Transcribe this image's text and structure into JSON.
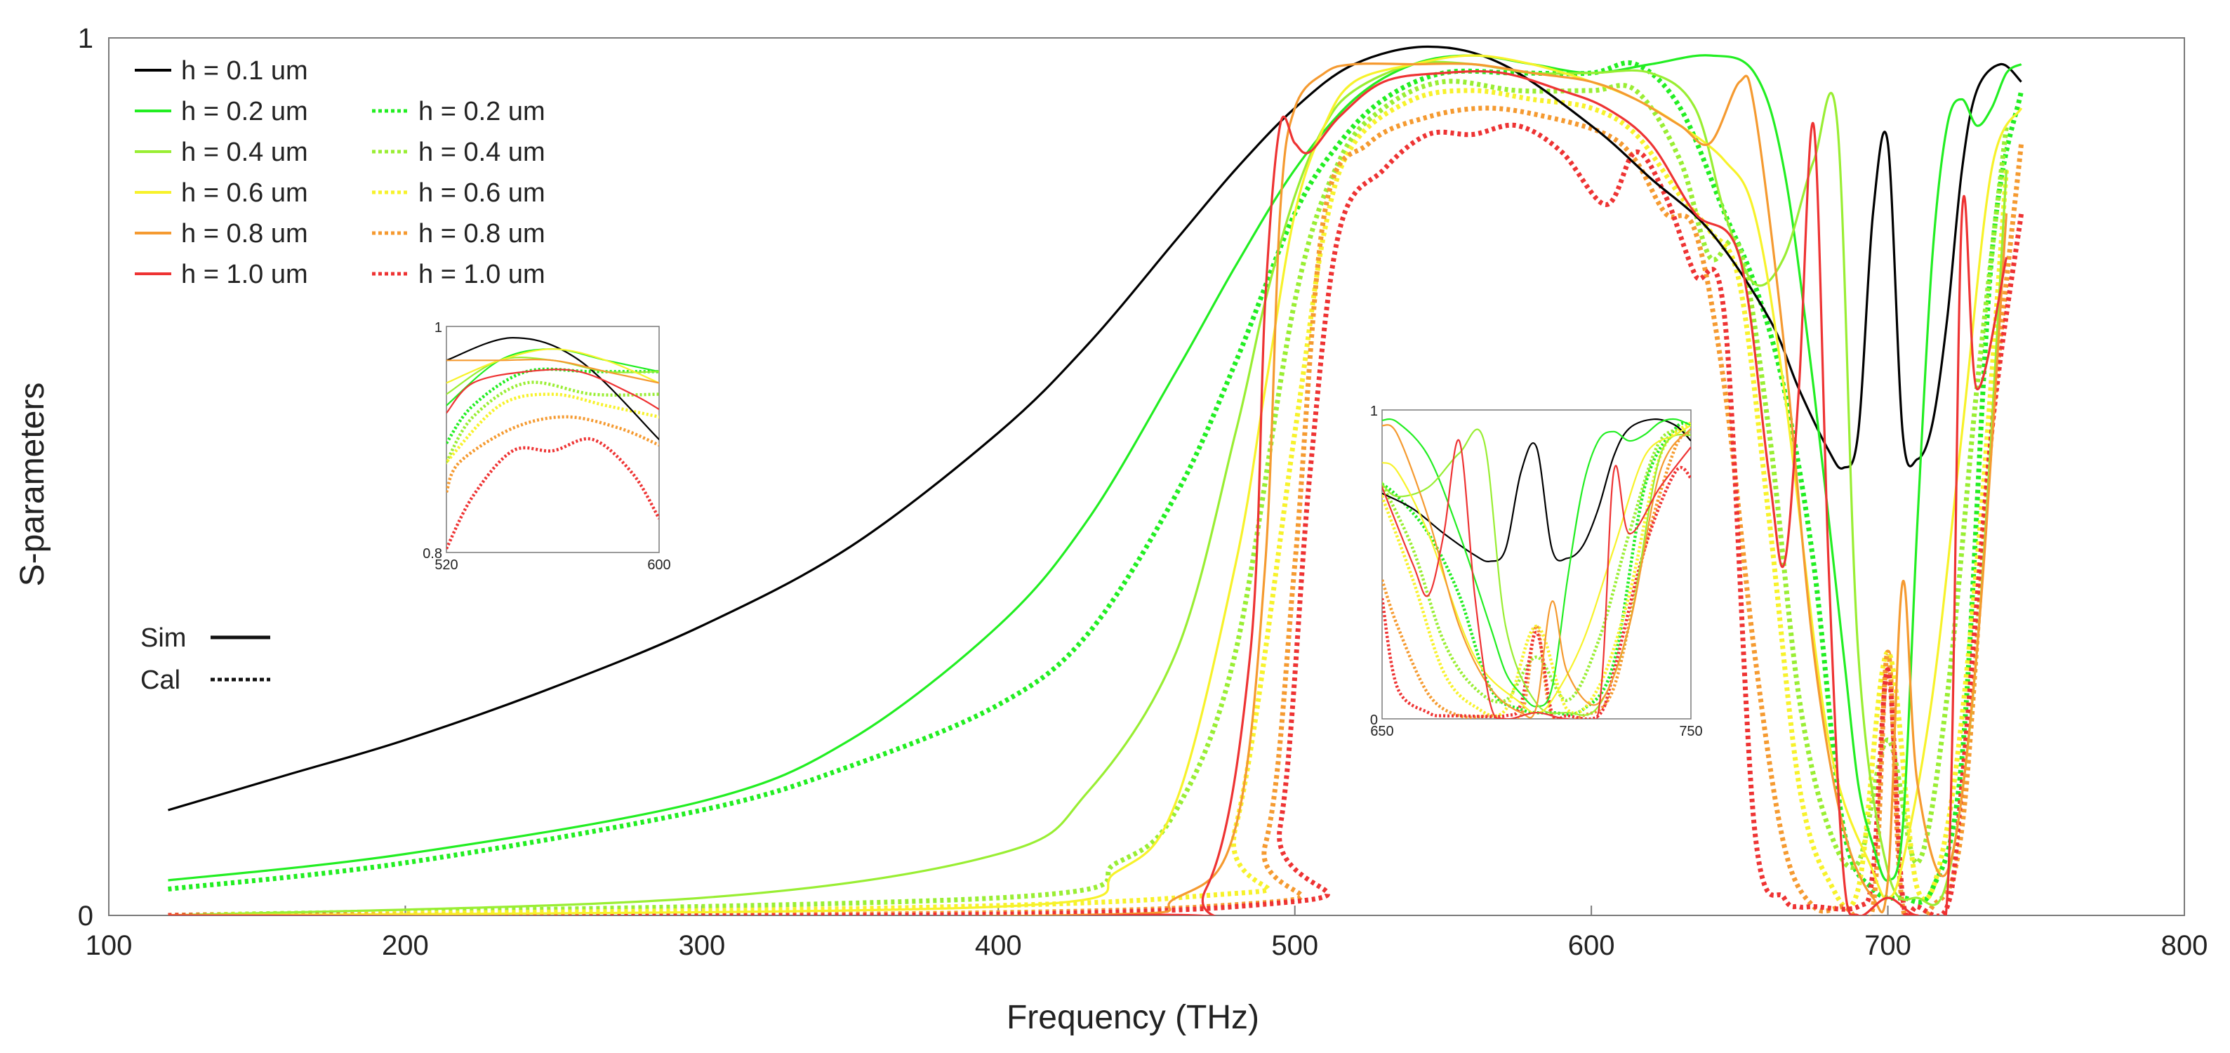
{
  "colors": {
    "h01": "#000000",
    "h02": "#22ee22",
    "h04": "#99ee33",
    "h06": "#f7f22a",
    "h08": "#f59a30",
    "h10": "#ee3333",
    "axis": "#7a7a7a"
  },
  "chart_data": {
    "type": "line",
    "title": "",
    "xlabel": "Frequency (THz)",
    "ylabel": "S-parameters",
    "xlim": [
      100,
      800
    ],
    "ylim": [
      0,
      1
    ],
    "xticks": [
      "100",
      "200",
      "300",
      "400",
      "500",
      "600",
      "700",
      "800"
    ],
    "yticks": [
      "0",
      "1"
    ],
    "style_legend": [
      {
        "name": "Sim",
        "dash": "solid"
      },
      {
        "name": "Cal",
        "dash": "dotted"
      }
    ],
    "series": [
      {
        "key": "h01",
        "name": "h = 0.1 um",
        "kind": "Sim",
        "color_key": "h01",
        "x": [
          120,
          160,
          200,
          250,
          300,
          350,
          400,
          430,
          460,
          480,
          500,
          520,
          545,
          570,
          600,
          620,
          640,
          660,
          670,
          680,
          685,
          690,
          695,
          700,
          705,
          710,
          715,
          720,
          725,
          730,
          738,
          745,
          750
        ],
        "y": [
          0.12,
          0.16,
          0.2,
          0.26,
          0.33,
          0.42,
          0.55,
          0.65,
          0.77,
          0.85,
          0.92,
          0.97,
          0.99,
          0.97,
          0.9,
          0.84,
          0.78,
          0.68,
          0.6,
          0.53,
          0.51,
          0.55,
          0.8,
          0.88,
          0.55,
          0.52,
          0.56,
          0.68,
          0.85,
          0.94,
          0.97,
          0.95,
          0.9
        ]
      },
      {
        "key": "h02s",
        "name": "h = 0.2 um",
        "kind": "Sim",
        "color_key": "h02",
        "x": [
          120,
          200,
          300,
          350,
          400,
          430,
          460,
          480,
          500,
          520,
          540,
          560,
          580,
          600,
          620,
          640,
          655,
          665,
          675,
          685,
          690,
          695,
          700,
          705,
          710,
          715,
          720,
          725,
          730,
          735,
          740,
          745,
          750
        ],
        "y": [
          0.04,
          0.07,
          0.13,
          0.2,
          0.33,
          0.45,
          0.62,
          0.74,
          0.85,
          0.93,
          0.97,
          0.98,
          0.97,
          0.96,
          0.97,
          0.98,
          0.96,
          0.85,
          0.6,
          0.3,
          0.15,
          0.08,
          0.04,
          0.1,
          0.45,
          0.75,
          0.9,
          0.93,
          0.9,
          0.92,
          0.96,
          0.97,
          0.95
        ]
      },
      {
        "key": "h02c",
        "name": "h = 0.2 um",
        "kind": "Cal",
        "color_key": "h02",
        "x": [
          120,
          200,
          300,
          350,
          400,
          430,
          460,
          480,
          500,
          515,
          530,
          550,
          575,
          600,
          615,
          630,
          645,
          655,
          665,
          675,
          685,
          695,
          705,
          715,
          725,
          735,
          745,
          750
        ],
        "y": [
          0.03,
          0.06,
          0.12,
          0.17,
          0.24,
          0.32,
          0.48,
          0.63,
          0.8,
          0.88,
          0.93,
          0.96,
          0.96,
          0.96,
          0.97,
          0.92,
          0.8,
          0.72,
          0.6,
          0.4,
          0.1,
          0.03,
          0.02,
          0.03,
          0.18,
          0.75,
          0.94,
          0.95
        ]
      },
      {
        "key": "h04s",
        "name": "h = 0.4 um",
        "kind": "Sim",
        "color_key": "h04",
        "x": [
          120,
          300,
          400,
          430,
          460,
          480,
          490,
          500,
          510,
          520,
          540,
          560,
          580,
          600,
          620,
          635,
          645,
          655,
          665,
          675,
          683,
          690,
          700,
          710,
          720,
          730,
          740,
          750
        ],
        "y": [
          0.0,
          0.02,
          0.07,
          0.14,
          0.3,
          0.55,
          0.7,
          0.82,
          0.9,
          0.94,
          0.97,
          0.97,
          0.96,
          0.96,
          0.96,
          0.92,
          0.8,
          0.72,
          0.75,
          0.86,
          0.9,
          0.3,
          0.05,
          0.02,
          0.04,
          0.3,
          0.85,
          0.92
        ]
      },
      {
        "key": "h04c",
        "name": "h = 0.4 um",
        "kind": "Cal",
        "color_key": "h04",
        "x": [
          120,
          400,
          440,
          460,
          480,
          500,
          515,
          530,
          550,
          575,
          600,
          615,
          630,
          640,
          650,
          660,
          670,
          680,
          690,
          700,
          710,
          720,
          730,
          740,
          750
        ],
        "y": [
          0.0,
          0.02,
          0.06,
          0.12,
          0.3,
          0.7,
          0.86,
          0.92,
          0.95,
          0.94,
          0.94,
          0.94,
          0.86,
          0.75,
          0.76,
          0.55,
          0.25,
          0.1,
          0.06,
          0.2,
          0.06,
          0.25,
          0.6,
          0.9,
          0.93
        ]
      },
      {
        "key": "h06s",
        "name": "h = 0.6 um",
        "kind": "Sim",
        "color_key": "h06",
        "x": [
          120,
          400,
          440,
          460,
          480,
          490,
          500,
          510,
          520,
          540,
          560,
          580,
          600,
          615,
          630,
          645,
          655,
          665,
          680,
          695,
          700,
          705,
          715,
          725,
          735,
          745,
          750
        ],
        "y": [
          0.0,
          0.01,
          0.05,
          0.13,
          0.4,
          0.6,
          0.8,
          0.9,
          0.95,
          0.97,
          0.98,
          0.97,
          0.95,
          0.93,
          0.9,
          0.86,
          0.8,
          0.6,
          0.2,
          0.05,
          0.02,
          0.06,
          0.25,
          0.55,
          0.85,
          0.92,
          0.95
        ]
      },
      {
        "key": "h06c",
        "name": "h = 0.6 um",
        "kind": "Cal",
        "color_key": "h06",
        "x": [
          120,
          460,
          480,
          500,
          510,
          520,
          540,
          560,
          580,
          600,
          615,
          630,
          640,
          650,
          660,
          670,
          680,
          690,
          700,
          710,
          720,
          730,
          740,
          750
        ],
        "y": [
          0.0,
          0.02,
          0.1,
          0.55,
          0.78,
          0.88,
          0.93,
          0.94,
          0.93,
          0.92,
          0.89,
          0.82,
          0.78,
          0.72,
          0.45,
          0.15,
          0.04,
          0.03,
          0.3,
          0.03,
          0.1,
          0.4,
          0.85,
          0.96
        ]
      },
      {
        "key": "h08s",
        "name": "h = 0.8 um",
        "kind": "Sim",
        "color_key": "h08",
        "x": [
          120,
          420,
          460,
          480,
          490,
          495,
          500,
          510,
          520,
          540,
          560,
          580,
          600,
          615,
          630,
          640,
          650,
          655,
          665,
          675,
          685,
          695,
          700,
          705,
          710,
          720,
          730,
          740,
          750
        ],
        "y": [
          0.0,
          0.0,
          0.02,
          0.1,
          0.4,
          0.8,
          0.92,
          0.96,
          0.97,
          0.97,
          0.97,
          0.96,
          0.95,
          0.93,
          0.9,
          0.88,
          0.95,
          0.92,
          0.65,
          0.3,
          0.1,
          0.02,
          0.04,
          0.38,
          0.15,
          0.05,
          0.3,
          0.8,
          0.94
        ]
      },
      {
        "key": "h08c",
        "name": "h = 0.8 um",
        "kind": "Cal",
        "color_key": "h08",
        "x": [
          120,
          470,
          490,
          500,
          510,
          525,
          545,
          565,
          585,
          605,
          615,
          625,
          635,
          645,
          655,
          665,
          675,
          685,
          695,
          700,
          705,
          715,
          725,
          735,
          745,
          750
        ],
        "y": [
          0.0,
          0.01,
          0.08,
          0.4,
          0.8,
          0.88,
          0.91,
          0.92,
          0.91,
          0.89,
          0.86,
          0.8,
          0.78,
          0.6,
          0.3,
          0.08,
          0.01,
          0.01,
          0.01,
          0.3,
          0.01,
          0.01,
          0.1,
          0.55,
          0.88,
          0.92
        ]
      },
      {
        "key": "h10s",
        "name": "h = 1.0 um",
        "kind": "Sim",
        "color_key": "h10",
        "x": [
          120,
          440,
          470,
          485,
          490,
          495,
          500,
          505,
          515,
          530,
          550,
          570,
          590,
          605,
          620,
          635,
          650,
          660,
          665,
          670,
          675,
          680,
          685,
          690,
          700,
          710,
          720,
          725,
          730,
          740,
          750
        ],
        "y": [
          0.0,
          0.0,
          0.03,
          0.3,
          0.7,
          0.9,
          0.88,
          0.87,
          0.91,
          0.95,
          0.96,
          0.96,
          0.94,
          0.92,
          0.88,
          0.8,
          0.75,
          0.5,
          0.4,
          0.6,
          0.9,
          0.4,
          0.05,
          0.0,
          0.02,
          0.0,
          0.02,
          0.8,
          0.6,
          0.75,
          0.88
        ]
      },
      {
        "key": "h10c",
        "name": "h = 1.0 um",
        "kind": "Cal",
        "color_key": "h10",
        "x": [
          120,
          480,
          495,
          505,
          515,
          530,
          545,
          560,
          575,
          590,
          605,
          615,
          625,
          635,
          645,
          655,
          665,
          670,
          675,
          690,
          695,
          700,
          705,
          710,
          720,
          725,
          735,
          745,
          750
        ],
        "y": [
          0.0,
          0.01,
          0.1,
          0.5,
          0.78,
          0.85,
          0.89,
          0.89,
          0.9,
          0.87,
          0.81,
          0.87,
          0.82,
          0.73,
          0.68,
          0.1,
          0.02,
          0.01,
          0.01,
          0.01,
          0.05,
          0.28,
          0.02,
          0.01,
          0.01,
          0.15,
          0.55,
          0.8,
          0.78
        ]
      }
    ],
    "insets": [
      {
        "name": "inset-520-600",
        "xlim": [
          520,
          600
        ],
        "ylim": [
          0.8,
          1
        ],
        "xticks": [
          "520",
          "600"
        ],
        "yticks": [
          "0.8",
          "1"
        ]
      },
      {
        "name": "inset-650-750",
        "xlim": [
          650,
          750
        ],
        "ylim": [
          0,
          1
        ],
        "xticks": [
          "650",
          "750"
        ],
        "yticks": [
          "0",
          "1"
        ]
      }
    ],
    "legend_position": "top-left",
    "grid": false
  }
}
